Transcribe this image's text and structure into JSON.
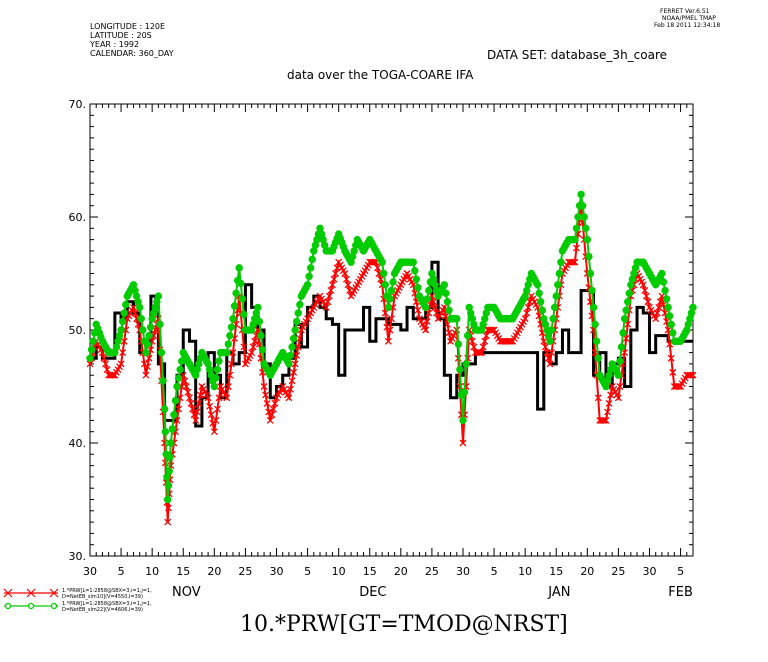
{
  "header": {
    "longitude": "LONGITUDE : 120E",
    "latitude": "LATITUDE : 20S",
    "year": "YEAR : 1992",
    "calendar": "CALENDAR: 360_DAY",
    "ferret_version": "FERRET  Ver.6.51",
    "ferret_org": "NOAA/PMEL TMAP",
    "ferret_date": "Feb 18 2011 12:34:18",
    "dataset": "DATA SET: database_3h_coare",
    "title": "data over the TOGA-COARE IFA"
  },
  "bottom_title": "10.*PRW[GT=TMOD@NRST]",
  "legend": [
    {
      "line1": "1.*PRW[L=1:2858@SBX=3,i=1,j=1,",
      "line2": "D=NetEB_slm10](V=4550,I=39)",
      "color": "#ff0000",
      "marker": "x"
    },
    {
      "line1": "1.*PRW[L=1:2858@SBX=3,i=1,j=1,",
      "line2": "D=NetEB_slm22](V=4606,I=39)",
      "color": "#00cc00",
      "marker": "o"
    }
  ],
  "chart_data": {
    "type": "line",
    "ylim": [
      30,
      70
    ],
    "yticks": [
      30,
      40,
      50,
      60,
      70
    ],
    "ytick_labels": [
      "30.",
      "40.",
      "50.",
      "60.",
      "70."
    ],
    "xlim": [
      0,
      97
    ],
    "xtick_labels": [
      {
        "x": 0,
        "label": "30"
      },
      {
        "x": 5,
        "label": "5"
      },
      {
        "x": 10,
        "label": "10"
      },
      {
        "x": 15,
        "label": "15"
      },
      {
        "x": 20,
        "label": "20"
      },
      {
        "x": 25,
        "label": "25"
      },
      {
        "x": 30,
        "label": "30"
      },
      {
        "x": 35,
        "label": "5"
      },
      {
        "x": 40,
        "label": "10"
      },
      {
        "x": 45,
        "label": "15"
      },
      {
        "x": 50,
        "label": "20"
      },
      {
        "x": 55,
        "label": "25"
      },
      {
        "x": 60,
        "label": "30"
      },
      {
        "x": 65,
        "label": "5"
      },
      {
        "x": 70,
        "label": "10"
      },
      {
        "x": 75,
        "label": "15"
      },
      {
        "x": 80,
        "label": "20"
      },
      {
        "x": 85,
        "label": "25"
      },
      {
        "x": 90,
        "label": "30"
      },
      {
        "x": 95,
        "label": "5"
      }
    ],
    "month_labels": [
      {
        "x": 15.5,
        "label": "NOV"
      },
      {
        "x": 45.5,
        "label": "DEC"
      },
      {
        "x": 75.5,
        "label": "JAN"
      },
      {
        "x": 95,
        "label": "FEB"
      }
    ],
    "series": [
      {
        "color": "#000000",
        "style": "step",
        "x": [
          0,
          1,
          2,
          4,
          5,
          6,
          7,
          8,
          9,
          9.8,
          10.6,
          11,
          12,
          13,
          14,
          15,
          16,
          17,
          18,
          19,
          20,
          21,
          22,
          23,
          24,
          25,
          26,
          27,
          28,
          29,
          30,
          31,
          32,
          33,
          34,
          35,
          36,
          37,
          38,
          39,
          40,
          41,
          42,
          43,
          44,
          45,
          46,
          47,
          48,
          49,
          50,
          51,
          52,
          53,
          54,
          55,
          56,
          57,
          58,
          59,
          60,
          61,
          62,
          63,
          64,
          65,
          66,
          67,
          68,
          69,
          70,
          71,
          72,
          73,
          74,
          75,
          76,
          77,
          78,
          79,
          80,
          81,
          82,
          83,
          84,
          85,
          86,
          87,
          88,
          89,
          90,
          91,
          92,
          93,
          94,
          95,
          96,
          97
        ],
        "y": [
          47.5,
          48.5,
          47.5,
          51.5,
          51,
          52.5,
          51.5,
          48,
          49,
          53,
          51.5,
          47,
          42,
          42,
          46,
          50,
          49,
          41.5,
          44,
          48,
          46,
          44,
          48,
          47,
          48,
          54,
          52,
          50,
          47,
          44,
          45,
          46,
          47.5,
          50.5,
          48.5,
          52,
          53,
          52,
          51,
          50.5,
          46,
          50,
          50,
          50,
          52,
          49,
          51,
          51,
          50.5,
          50.5,
          50,
          52,
          51,
          51,
          52,
          56,
          51,
          46,
          44,
          46,
          47,
          47,
          48,
          48,
          48,
          48,
          48,
          48,
          48,
          48,
          48,
          48,
          43,
          48,
          47,
          48,
          50,
          48,
          48,
          53.5,
          53.5,
          46,
          48,
          45,
          47,
          47.5,
          45,
          50,
          52,
          51.5,
          48,
          49.5,
          49.5,
          49,
          49,
          49,
          49,
          49
        ]
      },
      {
        "color": "#ff0000",
        "marker": "x",
        "x": [
          0,
          1,
          2,
          3,
          4,
          5,
          6,
          7,
          8,
          9,
          10,
          11,
          12,
          12.5,
          13,
          14,
          15,
          16,
          17,
          18,
          19,
          20,
          21,
          22,
          23,
          24,
          25,
          26,
          27,
          28,
          29,
          30,
          31,
          32,
          33,
          34,
          35,
          36,
          37,
          38,
          39,
          40,
          41,
          42,
          43,
          44,
          45,
          46,
          47,
          48,
          49,
          50,
          51,
          52,
          53,
          54,
          55,
          56,
          57,
          58,
          59,
          60,
          61,
          62,
          63,
          64,
          65,
          66,
          67,
          68,
          69,
          70,
          71,
          72,
          73,
          74,
          75,
          76,
          77,
          78,
          79,
          80,
          81,
          82,
          83,
          84,
          85,
          86,
          87,
          88,
          89,
          90,
          91,
          92,
          93,
          94,
          95,
          96,
          97
        ],
        "y": [
          47,
          49,
          48,
          46,
          46,
          47,
          51,
          52,
          50,
          46,
          49,
          51,
          40,
          33,
          38,
          42,
          46,
          44,
          42,
          45,
          44,
          41,
          45,
          44,
          48,
          53,
          47,
          48,
          50,
          45,
          42,
          44,
          45,
          44,
          47,
          50,
          51,
          52,
          53,
          52,
          54,
          56,
          55,
          53,
          54,
          55,
          56,
          56,
          54,
          49,
          53,
          54,
          55,
          54,
          51,
          50,
          53,
          51,
          52,
          49,
          50,
          40,
          50,
          48,
          48,
          50,
          50,
          49,
          49,
          49,
          50,
          51,
          53,
          52,
          49,
          47,
          51,
          55,
          56,
          56,
          61,
          55,
          50,
          42,
          42,
          45,
          44,
          48,
          53,
          55,
          54,
          52,
          51,
          53,
          50,
          45,
          45,
          46,
          46
        ]
      },
      {
        "color": "#00cc00",
        "marker": "o",
        "x": [
          0,
          1,
          2,
          3,
          4,
          5,
          6,
          7,
          8,
          9,
          10,
          11,
          12,
          12.5,
          13,
          14,
          15,
          16,
          17,
          18,
          19,
          20,
          21,
          22,
          23,
          24,
          25,
          26,
          27,
          28,
          29,
          30,
          31,
          32,
          33,
          34,
          35,
          36,
          37,
          38,
          39,
          40,
          41,
          42,
          43,
          44,
          45,
          46,
          47,
          48,
          49,
          50,
          51,
          52,
          53,
          54,
          55,
          56,
          57,
          58,
          59,
          60,
          61,
          62,
          63,
          64,
          65,
          66,
          67,
          68,
          69,
          70,
          71,
          72,
          73,
          74,
          75,
          76,
          77,
          78,
          79,
          80,
          81,
          82,
          83,
          84,
          85,
          86,
          87,
          88,
          89,
          90,
          91,
          92,
          93,
          94,
          95,
          96,
          97
        ],
        "y": [
          47.5,
          50.5,
          49,
          48,
          48,
          50,
          53,
          54,
          52,
          48,
          51,
          53,
          43,
          35,
          40,
          45,
          48,
          47,
          46,
          48,
          47,
          45,
          48,
          48,
          51,
          55.5,
          50,
          50,
          52,
          47,
          46,
          47,
          48,
          47,
          50,
          53,
          54,
          57,
          59,
          57,
          57,
          58.5,
          57,
          56,
          58,
          57,
          58,
          57,
          56,
          52,
          55,
          56,
          56,
          56,
          53,
          52,
          55,
          53,
          54,
          51,
          51,
          42,
          52,
          50,
          50,
          52,
          52,
          51,
          51,
          51,
          52,
          53,
          55,
          54,
          51,
          49,
          53,
          57,
          58,
          58,
          62,
          58,
          52,
          46,
          45,
          47,
          46,
          51,
          54,
          56,
          56,
          55,
          54,
          55,
          52,
          49,
          49,
          50,
          52
        ]
      }
    ]
  }
}
